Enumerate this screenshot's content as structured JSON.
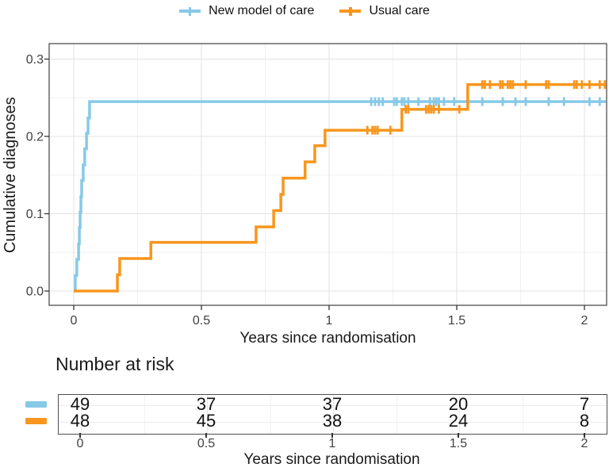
{
  "legend": {
    "items": [
      {
        "label": "New model of care",
        "color": "#87C9E7"
      },
      {
        "label": "Usual care",
        "color": "#F8961D"
      }
    ]
  },
  "chart_data": {
    "type": "line",
    "subtype": "kaplan-meier-cumulative-incidence-step",
    "title": "",
    "xlabel": "Years since randomisation",
    "ylabel": "Cumulative diagnoses",
    "xlim": [
      -0.095,
      2.085
    ],
    "ylim": [
      -0.018,
      0.32
    ],
    "x_ticks": [
      0,
      0.5,
      1,
      1.5,
      2
    ],
    "x_tick_labels": [
      "0",
      "0.5",
      "1",
      "1.5",
      "2"
    ],
    "x_minor": [
      0.25,
      0.75,
      1.25,
      1.75
    ],
    "y_ticks": [
      0,
      0.1,
      0.2,
      0.3
    ],
    "y_tick_labels": [
      "0.0",
      "0.1",
      "0.2",
      "0.3"
    ],
    "y_minor": [
      0.05,
      0.15,
      0.25
    ],
    "grid": true,
    "legend_position": "top",
    "colors": {
      "axis_text": "#404040",
      "title_text": "#1a1a1a",
      "panel_border": "#4f4f4f",
      "tick_mark": "#333333",
      "grid_major": "#E3E3E3",
      "grid_minor": "#F1F1F1"
    },
    "series": [
      {
        "name": "New model of care",
        "color": "#87C9E7",
        "steps": [
          [
            0,
            0
          ],
          [
            0.006,
            0.02
          ],
          [
            0.012,
            0.041
          ],
          [
            0.019,
            0.061
          ],
          [
            0.022,
            0.082
          ],
          [
            0.025,
            0.102
          ],
          [
            0.028,
            0.122
          ],
          [
            0.031,
            0.143
          ],
          [
            0.037,
            0.163
          ],
          [
            0.043,
            0.184
          ],
          [
            0.05,
            0.204
          ],
          [
            0.056,
            0.224
          ],
          [
            0.062,
            0.245
          ]
        ],
        "end_x": 2.085,
        "censor_times": [
          1.165,
          1.18,
          1.195,
          1.21,
          1.255,
          1.265,
          1.285,
          1.295,
          1.31,
          1.35,
          1.395,
          1.41,
          1.42,
          1.43,
          1.45,
          1.49,
          1.6,
          1.68,
          1.73,
          1.77,
          1.86,
          1.92,
          2.02,
          2.06
        ]
      },
      {
        "name": "Usual care",
        "color": "#F8961D",
        "steps": [
          [
            0,
            0
          ],
          [
            0.171,
            0.021
          ],
          [
            0.18,
            0.042
          ],
          [
            0.302,
            0.063
          ],
          [
            0.714,
            0.083
          ],
          [
            0.783,
            0.104
          ],
          [
            0.811,
            0.125
          ],
          [
            0.82,
            0.146
          ],
          [
            0.906,
            0.167
          ],
          [
            0.944,
            0.188
          ],
          [
            0.984,
            0.208
          ],
          [
            1.285,
            0.235
          ],
          [
            1.543,
            0.267
          ]
        ],
        "end_x": 2.085,
        "censor_times": [
          1.15,
          1.17,
          1.18,
          1.19,
          1.24,
          1.3,
          1.31,
          1.38,
          1.39,
          1.4,
          1.41,
          1.43,
          1.51,
          1.6,
          1.61,
          1.63,
          1.67,
          1.68,
          1.7,
          1.71,
          1.72,
          1.77,
          1.85,
          1.86,
          1.96,
          1.97,
          1.99,
          2.02,
          2.06,
          2.08
        ]
      }
    ]
  },
  "risk_table": {
    "title": "Number at risk",
    "xlabel": "Years since randomisation",
    "tick_times": [
      0,
      0.5,
      1,
      1.5,
      2
    ],
    "tick_labels": [
      "0",
      "0.5",
      "1",
      "1.5",
      "2"
    ],
    "rows": [
      {
        "name": "New model of care",
        "color": "#87C9E7",
        "values": [
          "49",
          "37",
          "37",
          "20",
          "7"
        ]
      },
      {
        "name": "Usual care",
        "color": "#F8961D",
        "values": [
          "48",
          "45",
          "38",
          "24",
          "8"
        ]
      }
    ]
  }
}
